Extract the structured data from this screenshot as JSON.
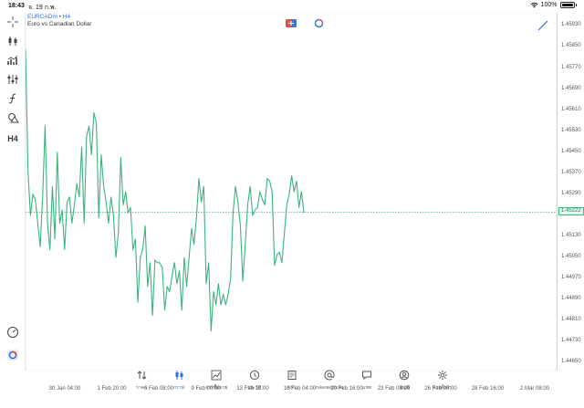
{
  "status": {
    "time": "18:43",
    "date": "จ. 19 ก.พ.",
    "battery": "100%",
    "battery_level": 1.0
  },
  "chart": {
    "symbol": "EURCADm • H4",
    "description": "Euro vs Canadian Dollar",
    "current_price": "1.45222"
  },
  "price_axis": [
    "1.45930",
    "1.45850",
    "1.45770",
    "1.45690",
    "1.45610",
    "1.45530",
    "1.45450",
    "1.45370",
    "1.45290",
    "1.45130",
    "1.45050",
    "1.44970",
    "1.44890",
    "1.44810",
    "1.44730",
    "1.44650"
  ],
  "time_axis": [
    "30 Jan 04:00",
    "1 Feb 20:00",
    "6 Feb 08:00",
    "9 Feb 00:00",
    "13 Feb 12:00",
    "16 Feb 04:00",
    "20 Feb 16:00",
    "23 Feb 08:00",
    "26 Feb 00:00",
    "28 Feb 16:00",
    "2 Mar 08:00"
  ],
  "toolbar": {
    "timeframe": "H4"
  },
  "nav": [
    {
      "label": "ราคา",
      "icon": "sort-arrows-icon",
      "active": false
    },
    {
      "label": "กราฟ",
      "icon": "candles-icon",
      "active": true
    },
    {
      "label": "การซื้อขาย",
      "icon": "trend-chart-icon",
      "active": false
    },
    {
      "label": "ประวัติ",
      "icon": "history-clock-icon",
      "active": false
    },
    {
      "label": "ข่าว",
      "icon": "news-icon",
      "active": false
    },
    {
      "label": "กล่องจดหมาย",
      "icon": "at-mail-icon",
      "active": false
    },
    {
      "label": "แชท",
      "icon": "chat-bubble-icon",
      "active": false
    },
    {
      "label": "บัญชี",
      "icon": "account-icon",
      "active": false
    },
    {
      "label": "การตั้งค่า",
      "icon": "gear-icon",
      "active": false
    }
  ],
  "chart_data": {
    "type": "line",
    "ylim": [
      1.4462,
      1.4598
    ],
    "y_ticks": [
      1.4593,
      1.4585,
      1.4577,
      1.4569,
      1.4561,
      1.4553,
      1.4545,
      1.4537,
      1.4529,
      1.4513,
      1.4505,
      1.4497,
      1.4489,
      1.4481,
      1.4473,
      1.4465
    ],
    "current_price": 1.45222,
    "series": [
      {
        "values": [
          1.4584,
          1.4538,
          1.4521,
          1.4529,
          1.4527,
          1.4518,
          1.4509,
          1.4528,
          1.4555,
          1.4518,
          1.4508,
          1.4532,
          1.4512,
          1.4545,
          1.4518,
          1.4523,
          1.4508,
          1.4526,
          1.4528,
          1.4518,
          1.4525,
          1.4533,
          1.4528,
          1.4547,
          1.4518,
          1.4551,
          1.4555,
          1.4544,
          1.456,
          1.4556,
          1.452,
          1.4544,
          1.4532,
          1.4526,
          1.4518,
          1.4528,
          1.4521,
          1.4505,
          1.4514,
          1.4543,
          1.4525,
          1.453,
          1.4522,
          1.4524,
          1.4508,
          1.4512,
          1.4488,
          1.4505,
          1.4508,
          1.4517,
          1.4494,
          1.4503,
          1.4483,
          1.4504,
          1.4503,
          1.4503,
          1.4501,
          1.4485,
          1.4494,
          1.4492,
          1.4498,
          1.4503,
          1.4495,
          1.45,
          1.4485,
          1.4505,
          1.4494,
          1.4505,
          1.4516,
          1.451,
          1.452,
          1.4535,
          1.4526,
          1.4532,
          1.4495,
          1.4503,
          1.4477,
          1.4492,
          1.4487,
          1.4495,
          1.4487,
          1.4491,
          1.4487,
          1.4491,
          1.4497,
          1.4522,
          1.4532,
          1.4526,
          1.4517,
          1.4496,
          1.451,
          1.4525,
          1.4532,
          1.4521,
          1.4523,
          1.4524,
          1.453,
          1.4527,
          1.4525,
          1.4535,
          1.4534,
          1.453,
          1.4502,
          1.4506,
          1.4507,
          1.4503,
          1.4514,
          1.4525,
          1.4529,
          1.4536,
          1.453,
          1.4534,
          1.4524,
          1.453,
          1.4522
        ]
      }
    ]
  }
}
